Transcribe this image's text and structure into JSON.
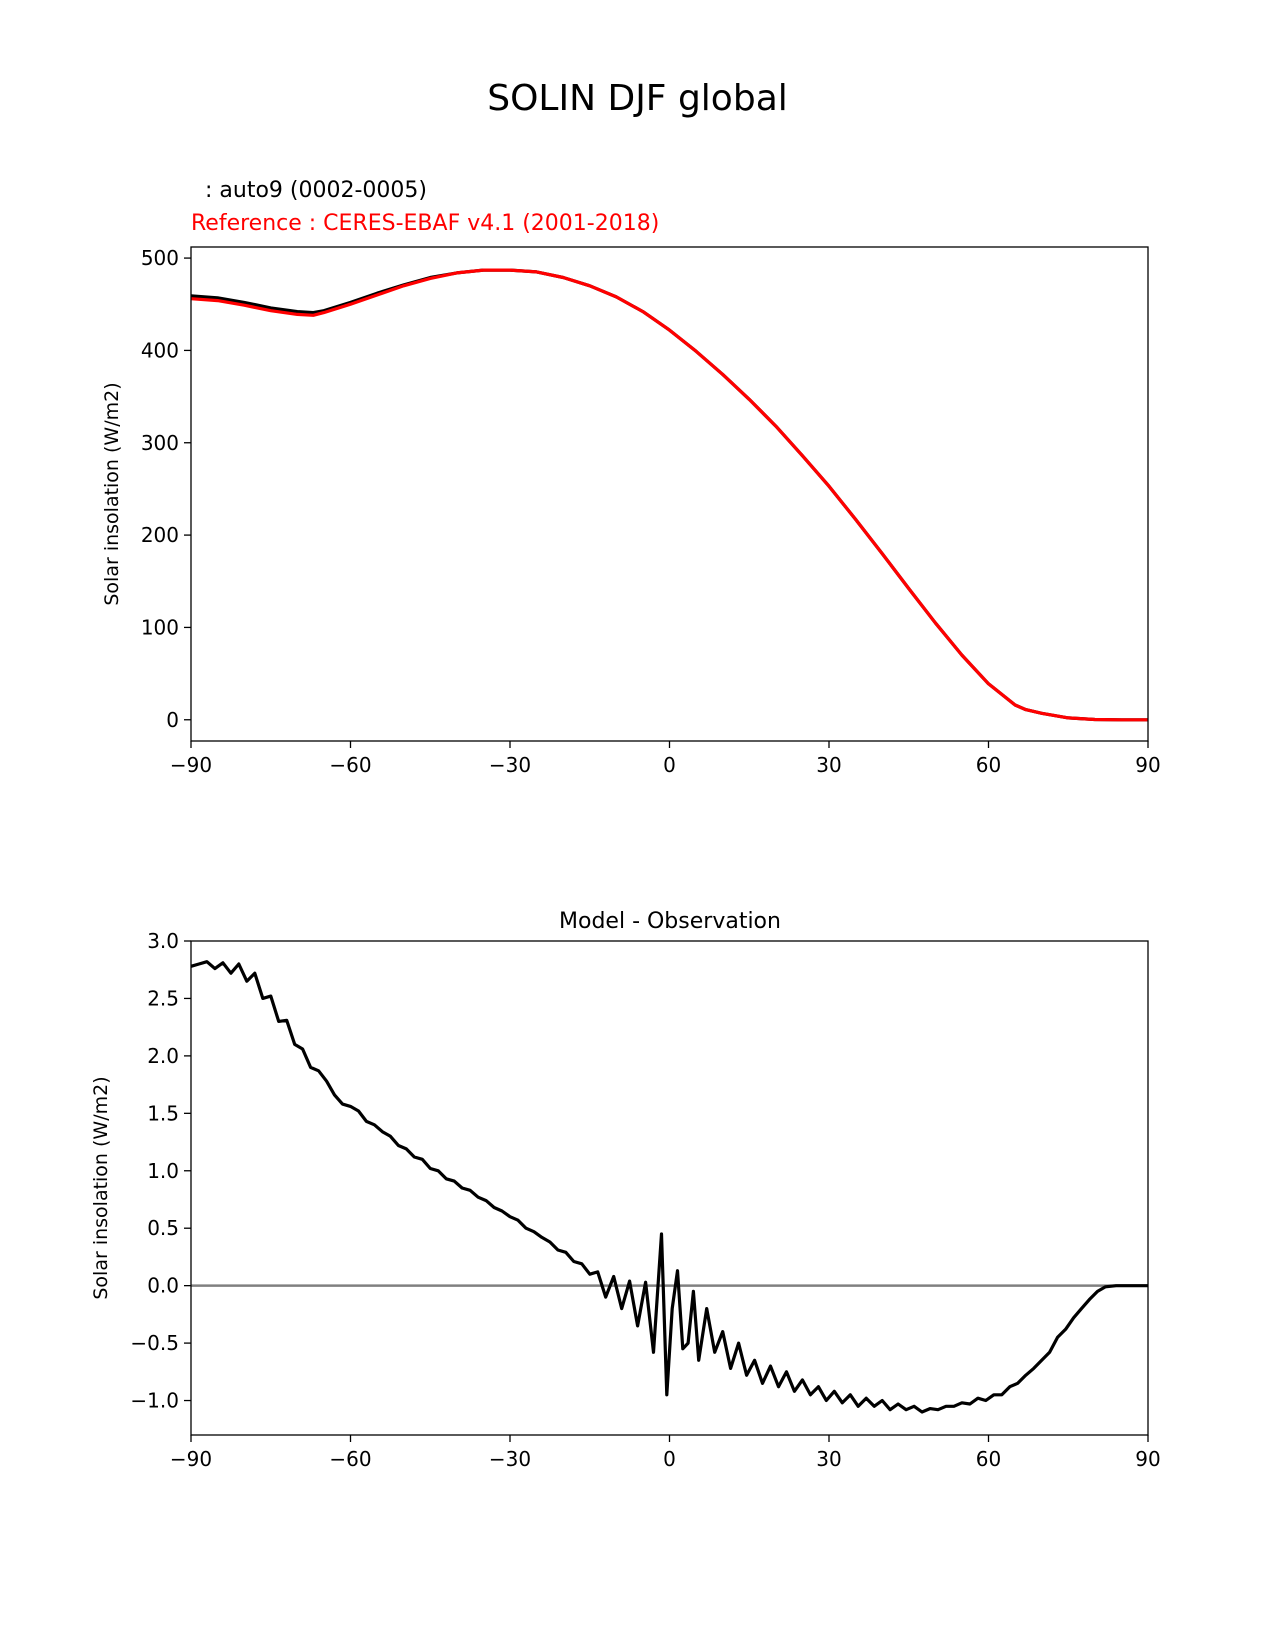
{
  "figure": {
    "title": "SOLIN DJF global"
  },
  "chart_data": [
    {
      "type": "line",
      "model_label": "  : auto9 (0002-0005)",
      "reference_label": "Reference : CERES-EBAF v4.1 (2001-2018)",
      "title": "",
      "xlabel": "",
      "ylabel": "Solar insolation (W/m2)",
      "xlim": [
        -90,
        90
      ],
      "ylim": [
        -23,
        512
      ],
      "xticks": [
        -90,
        -60,
        -30,
        0,
        30,
        60,
        90
      ],
      "yticks": [
        0,
        100,
        200,
        300,
        400,
        500
      ],
      "tick_labels_x": [
        "−90",
        "−60",
        "−30",
        "0",
        "30",
        "60",
        "90"
      ],
      "tick_labels_y": [
        "0",
        "100",
        "200",
        "300",
        "400",
        "500"
      ],
      "series": [
        {
          "color": "#000000",
          "x": [
            -90,
            -85,
            -80,
            -75,
            -70,
            -67,
            -65,
            -60,
            -55,
            -50,
            -45,
            -40,
            -35,
            -30,
            -25,
            -20,
            -15,
            -10,
            -5,
            0,
            5,
            10,
            15,
            20,
            25,
            30,
            35,
            40,
            45,
            50,
            55,
            60,
            65,
            67,
            70,
            75,
            80,
            85,
            90
          ],
          "values": [
            459,
            457,
            452,
            446,
            442,
            441,
            443,
            452,
            462,
            471,
            479,
            484,
            487,
            487,
            485,
            479,
            470,
            458,
            442,
            422,
            399,
            374,
            347,
            318,
            286,
            253,
            217,
            180,
            142,
            105,
            70,
            39,
            16,
            11,
            7,
            2,
            0.3,
            0,
            0
          ]
        },
        {
          "color": "#ff0000",
          "x": [
            -90,
            -85,
            -80,
            -75,
            -70,
            -67,
            -65,
            -60,
            -55,
            -50,
            -45,
            -40,
            -35,
            -30,
            -25,
            -20,
            -15,
            -10,
            -5,
            0,
            5,
            10,
            15,
            20,
            25,
            30,
            35,
            40,
            45,
            50,
            55,
            60,
            65,
            67,
            70,
            75,
            80,
            85,
            90
          ],
          "values": [
            456,
            454,
            449,
            443,
            439,
            438,
            441,
            450,
            460,
            470,
            478,
            484,
            487,
            487,
            485,
            479,
            470,
            458,
            442,
            422,
            399,
            374,
            347,
            318,
            286,
            253,
            217,
            180,
            142,
            105,
            70,
            39,
            16,
            11,
            7,
            2,
            0.3,
            0,
            0
          ]
        }
      ]
    },
    {
      "type": "line",
      "title": "Model - Observation",
      "xlabel": "",
      "ylabel": "Solar insolation (W/m2)",
      "xlim": [
        -90,
        90
      ],
      "ylim": [
        -1.3,
        3.0
      ],
      "xticks": [
        -90,
        -60,
        -30,
        0,
        30,
        60,
        90
      ],
      "yticks": [
        -1.0,
        -0.5,
        0.0,
        0.5,
        1.0,
        1.5,
        2.0,
        2.5,
        3.0
      ],
      "tick_labels_x": [
        "−90",
        "−60",
        "−30",
        "0",
        "30",
        "60",
        "90"
      ],
      "tick_labels_y": [
        "−1.0",
        "−0.5",
        "0.0",
        "0.5",
        "1.0",
        "1.5",
        "2.0",
        "2.5",
        "3.0"
      ],
      "reference_line": {
        "y": 0,
        "color": "#808080"
      },
      "series": [
        {
          "color": "#000000",
          "x": [
            -90,
            -88.5,
            -87,
            -85.5,
            -84,
            -82.5,
            -81,
            -79.5,
            -78,
            -76.5,
            -75,
            -73.5,
            -72,
            -70.5,
            -69,
            -67.5,
            -66,
            -64.5,
            -63,
            -61.5,
            -60,
            -58.5,
            -57,
            -55.5,
            -54,
            -52.5,
            -51,
            -49.5,
            -48,
            -46.5,
            -45,
            -43.5,
            -42,
            -40.5,
            -39,
            -37.5,
            -36,
            -34.5,
            -33,
            -31.5,
            -30,
            -28.5,
            -27,
            -25.5,
            -24,
            -22.5,
            -21,
            -19.5,
            -18,
            -16.5,
            -15,
            -13.5,
            -12,
            -10.5,
            -9,
            -7.5,
            -6,
            -4.5,
            -3,
            -1.5,
            -0.5,
            0.5,
            1.5,
            2.5,
            3.5,
            4.5,
            5.5,
            7,
            8.5,
            10,
            11.5,
            13,
            14.5,
            16,
            17.5,
            19,
            20.5,
            22,
            23.5,
            25,
            26.5,
            28,
            29.5,
            31,
            32.5,
            34,
            35.5,
            37,
            38.5,
            40,
            41.5,
            43,
            44.5,
            46,
            47.5,
            49,
            50.5,
            52,
            53.5,
            55,
            56.5,
            58,
            59.5,
            61,
            62.5,
            64,
            65.5,
            67,
            68.5,
            70,
            71.5,
            73,
            74.5,
            76,
            77.5,
            79,
            80.5,
            82,
            84,
            86,
            88,
            90
          ],
          "values": [
            2.78,
            2.8,
            2.82,
            2.76,
            2.81,
            2.72,
            2.8,
            2.65,
            2.72,
            2.5,
            2.52,
            2.3,
            2.31,
            2.1,
            2.06,
            1.9,
            1.87,
            1.78,
            1.66,
            1.58,
            1.56,
            1.52,
            1.43,
            1.4,
            1.34,
            1.3,
            1.22,
            1.19,
            1.12,
            1.1,
            1.02,
            1.0,
            0.93,
            0.91,
            0.85,
            0.83,
            0.77,
            0.74,
            0.68,
            0.65,
            0.6,
            0.57,
            0.5,
            0.47,
            0.42,
            0.38,
            0.31,
            0.29,
            0.21,
            0.19,
            0.1,
            0.12,
            -0.1,
            0.08,
            -0.2,
            0.04,
            -0.35,
            0.03,
            -0.58,
            0.45,
            -0.95,
            -0.2,
            0.13,
            -0.55,
            -0.5,
            -0.05,
            -0.65,
            -0.2,
            -0.58,
            -0.4,
            -0.72,
            -0.5,
            -0.78,
            -0.65,
            -0.85,
            -0.7,
            -0.88,
            -0.75,
            -0.92,
            -0.82,
            -0.95,
            -0.88,
            -1.0,
            -0.92,
            -1.02,
            -0.95,
            -1.05,
            -0.98,
            -1.05,
            -1.0,
            -1.08,
            -1.03,
            -1.08,
            -1.05,
            -1.1,
            -1.07,
            -1.08,
            -1.05,
            -1.05,
            -1.02,
            -1.03,
            -0.98,
            -1.0,
            -0.95,
            -0.95,
            -0.88,
            -0.85,
            -0.78,
            -0.72,
            -0.65,
            -0.58,
            -0.45,
            -0.38,
            -0.28,
            -0.2,
            -0.12,
            -0.05,
            -0.01,
            0.0,
            0.0,
            0.0,
            0.0
          ]
        }
      ]
    }
  ]
}
